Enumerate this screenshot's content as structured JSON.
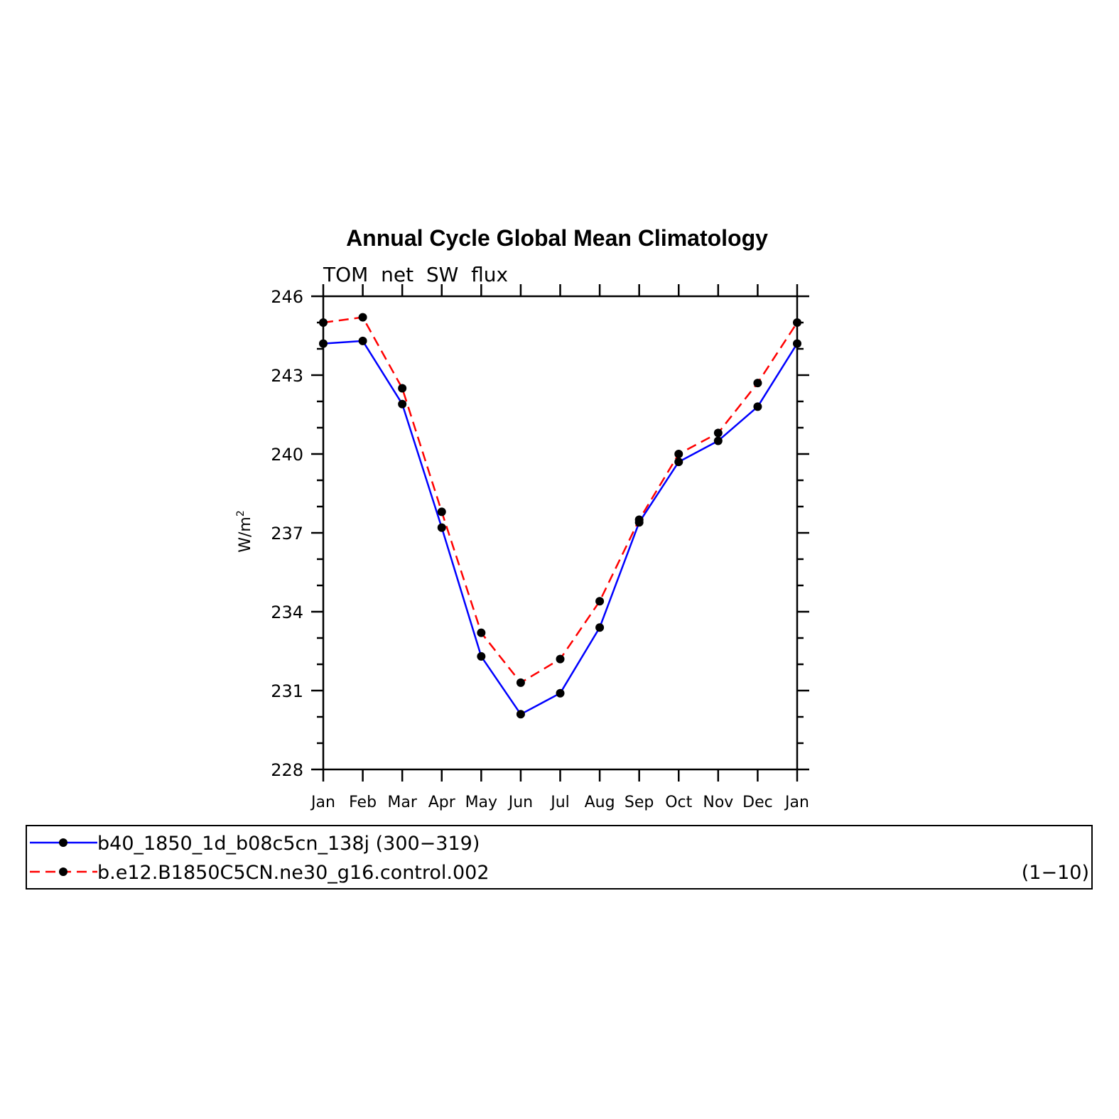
{
  "chart_data": {
    "type": "line",
    "title": "Annual Cycle Global Mean Climatology",
    "subtitle": "TOM  net  SW  flux",
    "ylabel": "W/m",
    "ylabel_superscript": "2",
    "categories": [
      "Jan",
      "Feb",
      "Mar",
      "Apr",
      "May",
      "Jun",
      "Jul",
      "Aug",
      "Sep",
      "Oct",
      "Nov",
      "Dec",
      "Jan"
    ],
    "ylim": [
      228,
      246
    ],
    "yticks": [
      228,
      231,
      234,
      237,
      240,
      243,
      246
    ],
    "grid": false,
    "legend_position": "bottom",
    "series": [
      {
        "name": "b40_1850_1d_b08c5cn_138j (300−319)",
        "color": "#0000ff",
        "dash": "solid",
        "values": [
          244.2,
          244.3,
          241.9,
          237.2,
          232.3,
          230.1,
          230.9,
          233.4,
          237.4,
          239.7,
          240.5,
          241.8,
          244.2
        ]
      },
      {
        "name": "b.e12.B1850C5CN.ne30_g16.control.002",
        "color": "#ff0000",
        "dash": "dashed",
        "values": [
          245.0,
          245.2,
          242.5,
          237.8,
          233.2,
          231.3,
          232.2,
          234.4,
          237.5,
          240.0,
          240.8,
          242.7,
          245.0
        ]
      }
    ],
    "legend_note": "(1−10)"
  }
}
